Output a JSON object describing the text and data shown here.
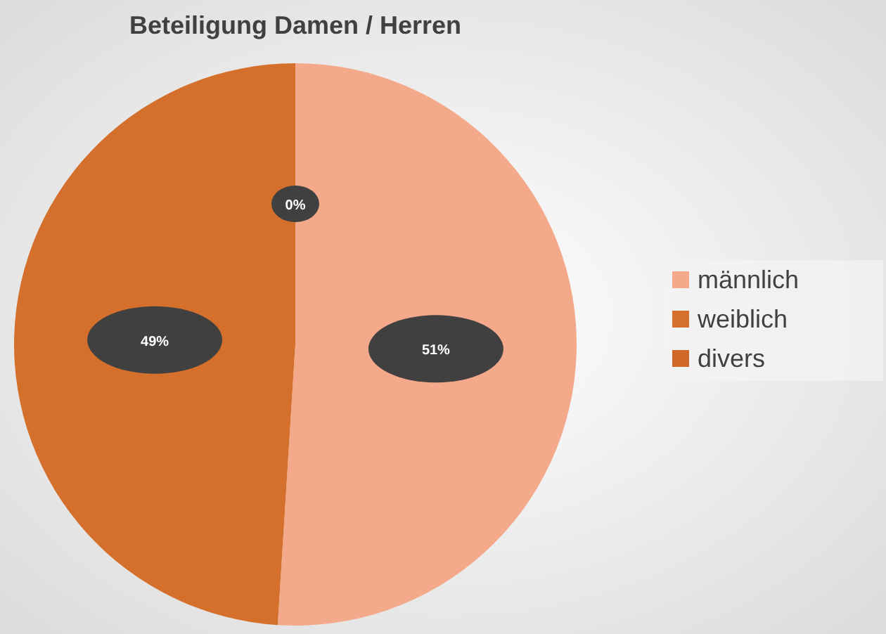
{
  "chart_data": {
    "type": "pie",
    "title": "Beteiligung Damen / Herren",
    "categories": [
      "männlich",
      "weiblich",
      "divers"
    ],
    "values": [
      51,
      49,
      0
    ],
    "colors": [
      "#f4a98a",
      "#d4702c",
      "#d0692a"
    ],
    "value_labels": [
      "51%",
      "49%",
      "0%"
    ],
    "legend": "right"
  }
}
